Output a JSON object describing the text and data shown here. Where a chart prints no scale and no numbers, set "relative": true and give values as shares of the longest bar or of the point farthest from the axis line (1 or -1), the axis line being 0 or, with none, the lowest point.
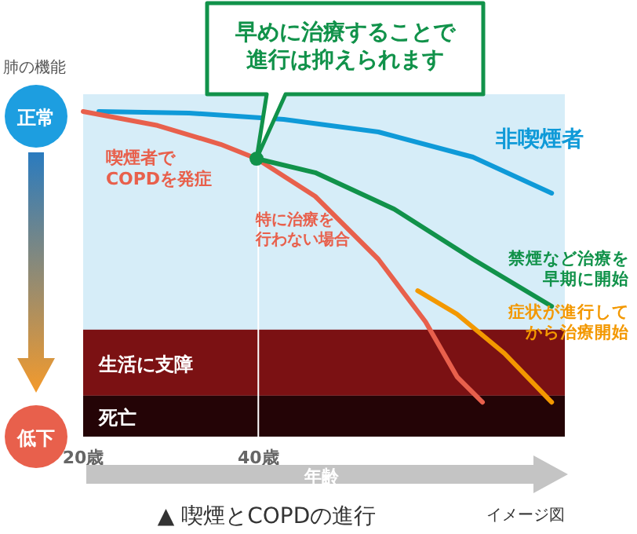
{
  "chart_data": {
    "type": "line",
    "relative": true,
    "title": "▲ 喫煙とCOPDの進行",
    "xlabel": "年齢",
    "ylabel": "肺の機能",
    "xlim": [
      20,
      75
    ],
    "xticks": [
      {
        "value": 20,
        "label": "20歳"
      },
      {
        "value": 40,
        "label": "40歳"
      }
    ],
    "series": [
      {
        "name": "非喫煙者",
        "color": "#0f9ad8",
        "x": [
          21.8,
          32.1,
          42.9,
          53.7,
          64.5,
          73.5
        ],
        "values": [
          1.0,
          0.995,
          0.976,
          0.937,
          0.86,
          0.749
        ]
      },
      {
        "name": "特に治療を行わない場合",
        "color": "#e8604c",
        "x": [
          20,
          28.5,
          35.7,
          39.8,
          46.5,
          53.7,
          59.1,
          62.7,
          65.6
        ],
        "values": [
          1.0,
          0.957,
          0.899,
          0.855,
          0.739,
          0.546,
          0.353,
          0.184,
          0.106
        ]
      },
      {
        "name": "禁煙など治療を早期に開始",
        "color": "#11924a",
        "x": [
          39.8,
          46.5,
          55.5,
          64.5,
          73.5
        ],
        "values": [
          0.855,
          0.812,
          0.7,
          0.546,
          0.401
        ]
      },
      {
        "name": "症状が進行してから治療開始",
        "color": "#f39800",
        "x": [
          58.2,
          62.7,
          68.1,
          73.5
        ],
        "values": [
          0.449,
          0.377,
          0.256,
          0.106
        ]
      }
    ],
    "bands": [
      {
        "axis": "y",
        "from": 0.126,
        "to": 0.329,
        "label": "生活に支障",
        "color": "#7b1113"
      },
      {
        "axis": "y",
        "from": 0,
        "to": 0.126,
        "label": "死亡",
        "color": "#240406"
      }
    ],
    "ref_lines": [
      {
        "axis": "x",
        "value": 40,
        "color": "#ffffff"
      }
    ],
    "annotations": [
      "早めに治療することで進行は抑えられます",
      {
        "text": "喫煙者でCOPDを発症",
        "x": 28.5,
        "y": 0.957
      },
      "正常",
      "低下",
      "イメージ図"
    ]
  }
}
